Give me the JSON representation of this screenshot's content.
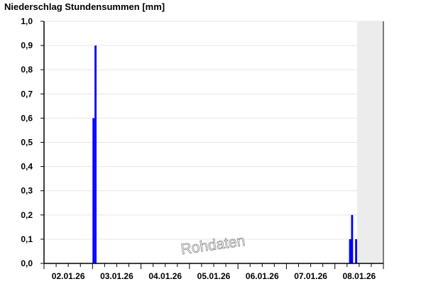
{
  "chart_data": {
    "type": "bar",
    "title": "Niederschlag Stundensummen [mm]",
    "watermark": "Rohdaten",
    "xlim": [
      "02.01.26 00:00",
      "09.01.26 00:00"
    ],
    "ylim": [
      0,
      1.0
    ],
    "y_ticks": [
      "0,0",
      "0,1",
      "0,2",
      "0,3",
      "0,4",
      "0,5",
      "0,6",
      "0,7",
      "0,8",
      "0,9",
      "1,0"
    ],
    "x_tick_labels": [
      "02.01.26",
      "03.01.26",
      "04.01.26",
      "05.01.26",
      "06.01.26",
      "07.01.26",
      "08.01.26"
    ],
    "grid": true,
    "bar_color": "#0000ff",
    "no_data_shade_from": "08.01.26 11:00",
    "no_data_color": "#ececec",
    "points": [
      {
        "time": "03.01.26 00:00",
        "value": 0.6
      },
      {
        "time": "03.01.26 01:00",
        "value": 0.9
      },
      {
        "time": "08.01.26 07:00",
        "value": 0.1
      },
      {
        "time": "08.01.26 08:00",
        "value": 0.2
      },
      {
        "time": "08.01.26 10:00",
        "value": 0.1
      }
    ]
  }
}
